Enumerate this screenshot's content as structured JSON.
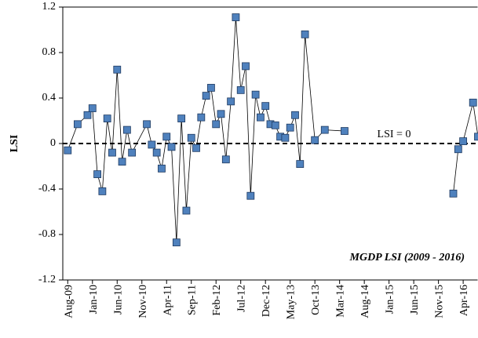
{
  "chart_data": {
    "type": "line",
    "y_label": "LSI",
    "annotations": [
      "LSI = 0",
      "MGDP LSI (2009 - 2016)"
    ],
    "x": [
      "Aug-09",
      "Oct-09",
      "Dec-09",
      "Jan-10",
      "Feb-10",
      "Mar-10",
      "Apr-10",
      "May-10",
      "Jun-10",
      "Jul-10",
      "Aug-10",
      "Sep-10",
      "Dec-10",
      "Jan-11",
      "Feb-11",
      "Mar-11",
      "Apr-11",
      "May-11",
      "Jun-11",
      "Jul-11",
      "Aug-11",
      "Sep-11",
      "Oct-11",
      "Nov-11",
      "Dec-11",
      "Jan-12",
      "Feb-12",
      "Mar-12",
      "Apr-12",
      "May-12",
      "Jun-12",
      "Jul-12",
      "Aug-12",
      "Sep-12",
      "Oct-12",
      "Nov-12",
      "Dec-12",
      "Jan-13",
      "Feb-13",
      "Mar-13",
      "Apr-13",
      "May-13",
      "Jun-13",
      "Jul-13",
      "Aug-13",
      "Oct-13",
      "Dec-13",
      "Apr-14",
      "Feb-16",
      "Mar-16",
      "Apr-16",
      "Jun-16",
      "Jul-16"
    ],
    "series": [
      {
        "name": "MGDP LSI",
        "color": "#4f81bd",
        "values": [
          -0.06,
          0.17,
          0.25,
          0.31,
          -0.27,
          -0.42,
          0.22,
          -0.08,
          0.65,
          -0.16,
          0.12,
          -0.08,
          0.17,
          -0.01,
          -0.08,
          -0.22,
          0.06,
          -0.03,
          -0.87,
          0.22,
          -0.59,
          0.05,
          -0.04,
          0.23,
          0.42,
          0.49,
          0.17,
          0.26,
          -0.14,
          0.37,
          1.11,
          0.47,
          0.68,
          -0.46,
          0.43,
          0.23,
          0.33,
          0.17,
          0.16,
          0.06,
          0.05,
          0.14,
          0.25,
          -0.18,
          0.96,
          0.03,
          0.12,
          0.11,
          -0.44,
          -0.05,
          0.02,
          0.36,
          0.06
        ]
      }
    ],
    "xlim": [
      "Jul-09",
      "Jul-16"
    ],
    "xticks": [
      "Aug-09",
      "Jan-10",
      "Jun-10",
      "Nov-10",
      "Apr-11",
      "Sep-11",
      "Feb-12",
      "Jul-12",
      "Dec-12",
      "May-13",
      "Oct-13",
      "Mar-14",
      "Aug-14",
      "Jan-15",
      "Jun-15",
      "Nov-15",
      "Apr-16"
    ],
    "ylim": [
      -1.2,
      1.2
    ],
    "yticks": [
      -1.2,
      -0.8,
      -0.4,
      0,
      0.4,
      0.8,
      1.2
    ],
    "grid": false
  }
}
